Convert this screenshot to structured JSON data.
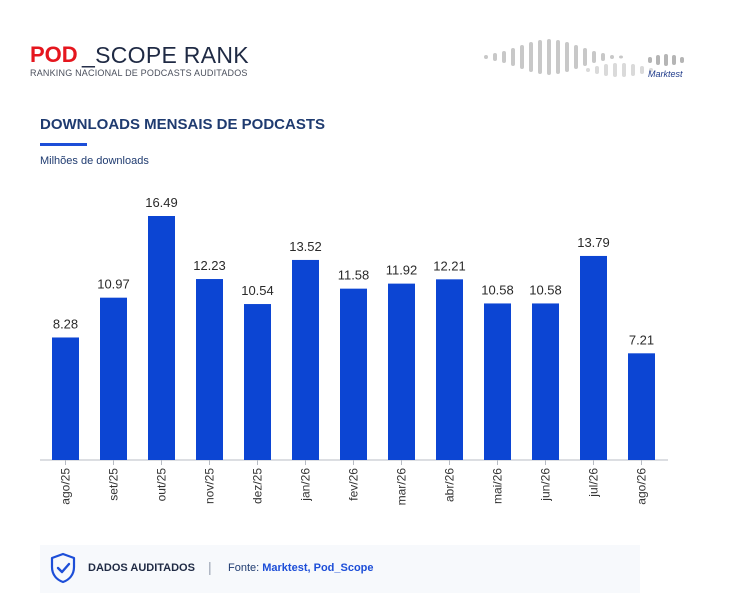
{
  "header": {
    "logo_text": "POD_SCOPE RANK",
    "logo_pod": "POD",
    "logo_rest": "_SCOPE RANK",
    "subtitle": "RANKING NACIONAL DE PODCASTS AUDITADOS",
    "partner": "Marktest",
    "brand_red": "#e5161e",
    "wave_color": "#c8c8c8"
  },
  "chart_data": {
    "type": "bar",
    "title": "DOWNLOADS MENSAIS DE PODCASTS",
    "ylabel": "Milhões de downloads",
    "xlabel": "",
    "categories": [
      "ago/25",
      "set/25",
      "out/25",
      "nov/25",
      "dez/25",
      "jan/26",
      "fev/26",
      "mar/26",
      "abr/26",
      "mai/26",
      "jun/26",
      "jul/26",
      "ago/26"
    ],
    "values": [
      8.28,
      10.97,
      16.49,
      12.23,
      10.54,
      13.52,
      11.58,
      11.92,
      12.21,
      10.58,
      10.58,
      13.79,
      7.21
    ],
    "value_labels": [
      "8.28",
      "10.97",
      "16.49",
      "12.23",
      "10.54",
      "13.52",
      "11.58",
      "11.92",
      "12.21",
      "10.58",
      "10.58",
      "13.79",
      "7.21"
    ],
    "ylim": [
      0,
      16.49
    ],
    "grid": false,
    "legend": "none",
    "bar_color": "#0c45d3"
  },
  "footer": {
    "audited_label": "DADOS AUDITADOS",
    "separator": "|",
    "source_label": "Fonte:",
    "source_value": "Marktest, Pod_Scope",
    "shield_icon": "shield-check-icon",
    "accent": "#1d4ed8"
  }
}
